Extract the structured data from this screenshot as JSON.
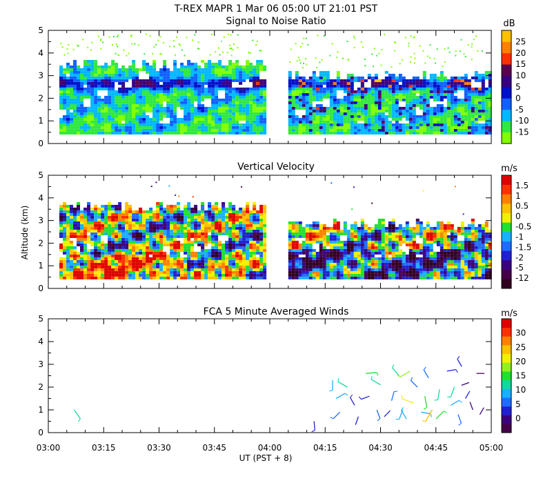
{
  "header": {
    "title": "T-REX   MAPR   1 Mar 06   05:00 UT   21:01   PST"
  },
  "x_axis": {
    "label": "UT  (PST + 8)",
    "ticks": [
      "03:00",
      "03:15",
      "03:30",
      "03:45",
      "04:00",
      "04:15",
      "04:30",
      "04:45",
      "05:00"
    ],
    "range_minutes": [
      0,
      120
    ]
  },
  "y_axis": {
    "label": "Altitude (km)",
    "ticks": [
      "0",
      "1",
      "2",
      "3",
      "4",
      "5"
    ],
    "range_km": [
      0,
      5
    ]
  },
  "palette": [
    "#46004a",
    "#3a0080",
    "#2020d0",
    "#1e6cff",
    "#18b0ff",
    "#10d8a0",
    "#20e030",
    "#90f020",
    "#f0f000",
    "#ffc000",
    "#ff8000",
    "#ff3800",
    "#e00000"
  ],
  "chart_data": [
    {
      "type": "heatmap",
      "title": "Signal to Noise Ratio",
      "xlabel": "UT  (PST + 8)",
      "ylabel": "Altitude (km)",
      "xlim_minutes": [
        0,
        120
      ],
      "ylim": [
        0,
        5
      ],
      "data_coverage": [
        {
          "start_min": 3,
          "end_min": 59,
          "bottom_km": 0.4,
          "top_km": 3.7
        },
        {
          "start_min": 65,
          "end_min": 120,
          "bottom_km": 0.4,
          "top_km": 3.2
        }
      ],
      "colorbar": {
        "unit": "dB",
        "labels": [
          "-15",
          "-10",
          "-5",
          "0",
          "5",
          "10",
          "15",
          "20",
          "25"
        ],
        "colors": [
          "#80ff00",
          "#30e840",
          "#00b8ff",
          "#1060ff",
          "#0010c8",
          "#380080",
          "#5a0050",
          "#ff3000",
          "#ff8000",
          "#ffc000"
        ]
      }
    },
    {
      "type": "heatmap",
      "title": "Vertical Velocity",
      "xlabel": "UT  (PST + 8)",
      "ylabel": "Altitude (km)",
      "xlim_minutes": [
        0,
        120
      ],
      "ylim": [
        0,
        5
      ],
      "data_coverage": [
        {
          "start_min": 3,
          "end_min": 59,
          "bottom_km": 0.4,
          "top_km": 3.8
        },
        {
          "start_min": 65,
          "end_min": 120,
          "bottom_km": 0.4,
          "top_km": 3.0
        }
      ],
      "colorbar": {
        "unit": "m/s",
        "labels": [
          "-12",
          "-5",
          "-2",
          "-1.5",
          "-1",
          "-0.5",
          "0",
          "0.5",
          "1",
          "1.5"
        ],
        "colors": [
          "#300020",
          "#46004a",
          "#3a0080",
          "#2020d0",
          "#1e6cff",
          "#18b0ff",
          "#20e030",
          "#f0f000",
          "#ffc000",
          "#ff8000",
          "#ff3000",
          "#e00000"
        ]
      }
    },
    {
      "type": "scatter",
      "title": "FCA 5 Minute Averaged Winds",
      "xlabel": "UT  (PST + 8)",
      "ylabel": "Altitude (km)",
      "xlim_minutes": [
        0,
        120
      ],
      "ylim": [
        0,
        5
      ],
      "barbs": [
        {
          "t": 7,
          "alt": 1.0,
          "speed": 13,
          "dir": 145
        },
        {
          "t": 72,
          "alt": 0.5,
          "speed": 6,
          "dir": 175
        },
        {
          "t": 77,
          "alt": 2.3,
          "speed": 9,
          "dir": 180
        },
        {
          "t": 78,
          "alt": 1.5,
          "speed": 11,
          "dir": 60
        },
        {
          "t": 79,
          "alt": 0.9,
          "speed": 7,
          "dir": 225
        },
        {
          "t": 81,
          "alt": 2.0,
          "speed": 13,
          "dir": 300
        },
        {
          "t": 83,
          "alt": 1.2,
          "speed": 6,
          "dir": 330
        },
        {
          "t": 84,
          "alt": 0.7,
          "speed": 4,
          "dir": 200
        },
        {
          "t": 86,
          "alt": 2.6,
          "speed": 14,
          "dir": 85
        },
        {
          "t": 87,
          "alt": 1.6,
          "speed": 5,
          "dir": 250
        },
        {
          "t": 89,
          "alt": 1.0,
          "speed": 7,
          "dir": 160
        },
        {
          "t": 90,
          "alt": 2.1,
          "speed": 12,
          "dir": 300
        },
        {
          "t": 91,
          "alt": 0.7,
          "speed": 4,
          "dir": 45
        },
        {
          "t": 93,
          "alt": 1.4,
          "speed": 8,
          "dir": 15
        },
        {
          "t": 95,
          "alt": 2.5,
          "speed": 12,
          "dir": 320
        },
        {
          "t": 96,
          "alt": 1.0,
          "speed": 10,
          "dir": 200
        },
        {
          "t": 97,
          "alt": 0.6,
          "speed": 11,
          "dir": 330
        },
        {
          "t": 98,
          "alt": 2.7,
          "speed": 17,
          "dir": 240
        },
        {
          "t": 99,
          "alt": 1.3,
          "speed": 21,
          "dir": 290
        },
        {
          "t": 100,
          "alt": 2.0,
          "speed": 7,
          "dir": 315
        },
        {
          "t": 101,
          "alt": 0.9,
          "speed": 9,
          "dir": 100
        },
        {
          "t": 102,
          "alt": 1.6,
          "speed": 16,
          "dir": 170
        },
        {
          "t": 103,
          "alt": 2.4,
          "speed": 8,
          "dir": 330
        },
        {
          "t": 104,
          "alt": 1.0,
          "speed": 23,
          "dir": 210
        },
        {
          "t": 105,
          "alt": 0.6,
          "speed": 14,
          "dir": 45
        },
        {
          "t": 106,
          "alt": 1.9,
          "speed": 12,
          "dir": 190
        },
        {
          "t": 108,
          "alt": 2.7,
          "speed": 6,
          "dir": 80
        },
        {
          "t": 109,
          "alt": 1.2,
          "speed": 9,
          "dir": 60
        },
        {
          "t": 110,
          "alt": 2.0,
          "speed": 12,
          "dir": 200
        },
        {
          "t": 111,
          "alt": 0.8,
          "speed": 7,
          "dir": 160
        },
        {
          "t": 112,
          "alt": 2.9,
          "speed": 5,
          "dir": 330
        },
        {
          "t": 113,
          "alt": 1.5,
          "speed": 4,
          "dir": 30
        },
        {
          "t": 114,
          "alt": 2.2,
          "speed": 2,
          "dir": 250
        },
        {
          "t": 115,
          "alt": 1.0,
          "speed": 3,
          "dir": 340
        },
        {
          "t": 116,
          "alt": 2.6,
          "speed": 1,
          "dir": 90
        },
        {
          "t": 118,
          "alt": 1.1,
          "speed": 2,
          "dir": 210
        }
      ],
      "colorbar": {
        "unit": "m/s",
        "labels": [
          "0",
          "5",
          "10",
          "15",
          "20",
          "25",
          "30"
        ],
        "colors": [
          "#46004a",
          "#3a0080",
          "#2020d0",
          "#1e6cff",
          "#18b0ff",
          "#10d8a0",
          "#20e030",
          "#90f020",
          "#f0f000",
          "#ffc000",
          "#ff8000",
          "#ff3000",
          "#e00000"
        ]
      }
    }
  ]
}
